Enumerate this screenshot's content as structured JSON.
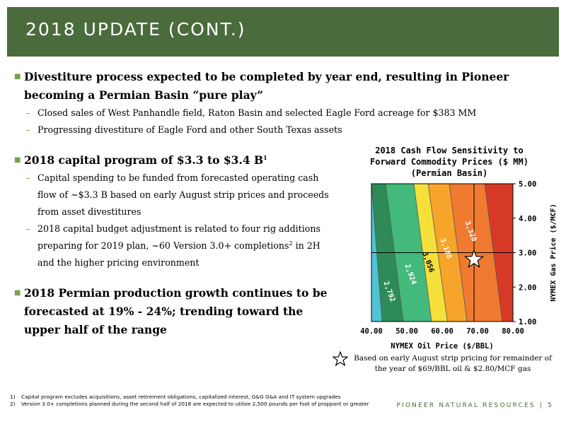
{
  "header": {
    "title": "2018 UPDATE (CONT.)"
  },
  "bullets": [
    {
      "text": "Divestiture process expected to be completed by year end, resulting in Pioneer becoming a Permian Basin “pure play”",
      "subs": [
        "Closed sales of West Panhandle field, Raton Basin and selected Eagle Ford acreage for $383 MM",
        "Progressing divestiture of Eagle Ford and other South Texas assets"
      ]
    },
    {
      "text": "2018 capital program of $3.3 to $3.4 B",
      "sup": "1",
      "subs": [
        "Capital spending to be funded from forecasted operating cash flow of ~$3.3 B based on early August strip prices and proceeds from asset divestitures",
        "2018 capital budget adjustment is related to four rig additions preparing for 2019 plan, ~60 Version 3.0+ completions",
        "in 2H and the higher pricing environment"
      ],
      "sub_sup": "2"
    },
    {
      "text": "2018 Permian production growth continues to be forecasted at 19% - 24%; trending toward the upper half of the range"
    }
  ],
  "chart_data": {
    "type": "heatmap",
    "title": "2018 Cash Flow Sensitivity to Forward Commodity Prices ($ MM) (Permian Basin)",
    "xlabel": "NYMEX Oil Price ($/BBL)",
    "ylabel": "NYMEX Gas Price ($/MCF)",
    "x_ticks": [
      "40.00",
      "50.00",
      "60.00",
      "70.00",
      "80.00"
    ],
    "y_ticks": [
      "1.00",
      "2.00",
      "3.00",
      "4.00",
      "5.00"
    ],
    "xlim": [
      40,
      80
    ],
    "ylim": [
      1,
      5
    ],
    "contour_labels": [
      "2,792",
      "2,924",
      "3,056",
      "3,188",
      "3,320"
    ],
    "current_point": {
      "x": 69,
      "y": 2.8
    },
    "colors": [
      "#4fc3d6",
      "#2e8b57",
      "#43b97c",
      "#f5e03a",
      "#f7a42a",
      "#ef7a30",
      "#d63a26",
      "#b62c1d"
    ]
  },
  "note": "Based on early August strip pricing for remainder of the year of $69/BBL oil & $2.80/MCF gas",
  "footnotes": [
    {
      "num": "1)",
      "text": "Capital program excludes acquisitions, asset retirement obligations, capitalized interest, G&G G&A and IT system upgrades"
    },
    {
      "num": "2)",
      "text": "Version 3.0+ completions planned during the second half of 2018 are expected to utilize 2,500 pounds per foot of proppant or greater"
    }
  ],
  "footer": {
    "company": "PIONEER NATURAL RESOURCES",
    "separator": "|",
    "page": "5"
  }
}
